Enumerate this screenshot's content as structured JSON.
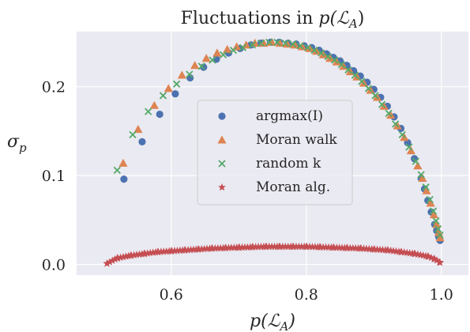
{
  "chart_data": {
    "type": "scatter",
    "title": "Fluctuations in p(ℒA)",
    "title_parts": {
      "prefix": "Fluctuations in ",
      "math": "p(ℒ",
      "sub": "A",
      "suffix": ")"
    },
    "xlabel": "p(ℒA)",
    "xlabel_parts": {
      "math": "p(ℒ",
      "sub": "A",
      "suffix": ")"
    },
    "ylabel": "σp",
    "ylabel_parts": {
      "main": "σ",
      "sub": "p"
    },
    "xlim": [
      0.46,
      1.04
    ],
    "ylim": [
      -0.012,
      0.262
    ],
    "xticks": [
      0.6,
      0.8,
      1.0
    ],
    "xtick_labels": [
      "0.6",
      "0.8",
      "1.0"
    ],
    "yticks": [
      0.0,
      0.1,
      0.2
    ],
    "ytick_labels": [
      "0.0",
      "0.1",
      "0.2"
    ],
    "grid": true,
    "background": "#eaeaf2",
    "legend_position": "center",
    "series": [
      {
        "name": "argmax(I)",
        "marker": "circle",
        "color": "#4c72b0",
        "x": [
          0.53,
          0.557,
          0.583,
          0.606,
          0.628,
          0.648,
          0.667,
          0.685,
          0.702,
          0.718,
          0.733,
          0.747,
          0.76,
          0.773,
          0.785,
          0.797,
          0.808,
          0.819,
          0.83,
          0.84,
          0.85,
          0.86,
          0.87,
          0.88,
          0.89,
          0.9,
          0.91,
          0.92,
          0.93,
          0.94,
          0.95,
          0.96,
          0.97,
          0.975,
          0.98,
          0.985,
          0.99,
          0.993,
          0.996,
          0.998
        ],
        "y": [
          0.096,
          0.138,
          0.169,
          0.192,
          0.21,
          0.222,
          0.231,
          0.238,
          0.243,
          0.247,
          0.249,
          0.25,
          0.25,
          0.249,
          0.248,
          0.246,
          0.244,
          0.241,
          0.237,
          0.233,
          0.229,
          0.224,
          0.218,
          0.212,
          0.205,
          0.197,
          0.188,
          0.178,
          0.166,
          0.153,
          0.137,
          0.119,
          0.097,
          0.085,
          0.072,
          0.059,
          0.045,
          0.038,
          0.031,
          0.027
        ]
      },
      {
        "name": "Moran walk",
        "marker": "triangle",
        "color": "#dd8452",
        "x": [
          0.529,
          0.551,
          0.575,
          0.596,
          0.616,
          0.635,
          0.652,
          0.668,
          0.683,
          0.697,
          0.711,
          0.724,
          0.737,
          0.749,
          0.761,
          0.772,
          0.783,
          0.794,
          0.805,
          0.815,
          0.825,
          0.835,
          0.845,
          0.855,
          0.865,
          0.875,
          0.885,
          0.895,
          0.905,
          0.915,
          0.925,
          0.935,
          0.945,
          0.955,
          0.965,
          0.972,
          0.978,
          0.984,
          0.989,
          0.993,
          0.996,
          0.998
        ],
        "y": [
          0.114,
          0.152,
          0.179,
          0.198,
          0.213,
          0.224,
          0.232,
          0.238,
          0.242,
          0.245,
          0.247,
          0.249,
          0.249,
          0.25,
          0.249,
          0.248,
          0.247,
          0.245,
          0.243,
          0.24,
          0.236,
          0.232,
          0.228,
          0.223,
          0.217,
          0.211,
          0.204,
          0.196,
          0.188,
          0.178,
          0.168,
          0.156,
          0.143,
          0.128,
          0.111,
          0.097,
          0.083,
          0.069,
          0.056,
          0.045,
          0.036,
          0.03
        ]
      },
      {
        "name": "random k",
        "marker": "x",
        "color": "#55a868",
        "x": [
          0.52,
          0.543,
          0.566,
          0.588,
          0.608,
          0.627,
          0.645,
          0.661,
          0.677,
          0.692,
          0.706,
          0.72,
          0.733,
          0.745,
          0.757,
          0.769,
          0.78,
          0.791,
          0.802,
          0.812,
          0.822,
          0.832,
          0.842,
          0.852,
          0.862,
          0.872,
          0.882,
          0.892,
          0.902,
          0.912,
          0.922,
          0.932,
          0.942,
          0.952,
          0.962,
          0.97,
          0.977,
          0.983,
          0.988,
          0.992,
          0.995,
          0.998
        ],
        "y": [
          0.106,
          0.146,
          0.172,
          0.19,
          0.203,
          0.214,
          0.223,
          0.23,
          0.236,
          0.241,
          0.244,
          0.247,
          0.249,
          0.25,
          0.25,
          0.249,
          0.248,
          0.246,
          0.244,
          0.241,
          0.238,
          0.234,
          0.23,
          0.225,
          0.219,
          0.213,
          0.206,
          0.198,
          0.19,
          0.18,
          0.17,
          0.158,
          0.146,
          0.132,
          0.116,
          0.101,
          0.087,
          0.073,
          0.06,
          0.049,
          0.04,
          0.033
        ]
      },
      {
        "name": "Moran alg.",
        "marker": "star",
        "color": "#c44e52",
        "x": [
          0.505,
          0.52,
          0.54,
          0.56,
          0.58,
          0.6,
          0.62,
          0.64,
          0.66,
          0.68,
          0.7,
          0.72,
          0.74,
          0.76,
          0.78,
          0.8,
          0.82,
          0.84,
          0.86,
          0.88,
          0.9,
          0.92,
          0.94,
          0.96,
          0.98,
          0.99,
          0.998
        ],
        "y": [
          0.001,
          0.007,
          0.01,
          0.012,
          0.014,
          0.015,
          0.016,
          0.017,
          0.018,
          0.0185,
          0.019,
          0.0195,
          0.02,
          0.02,
          0.02,
          0.02,
          0.0195,
          0.019,
          0.0185,
          0.018,
          0.017,
          0.016,
          0.014,
          0.012,
          0.009,
          0.006,
          0.002
        ]
      }
    ]
  }
}
